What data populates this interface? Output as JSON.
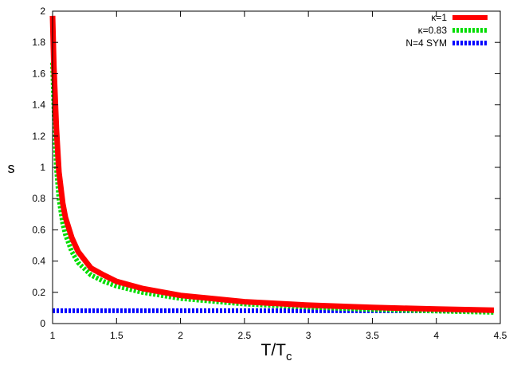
{
  "chart_data": {
    "type": "line",
    "title": "",
    "xlabel": "T/T",
    "xlabel_sub": "c",
    "ylabel": "s",
    "xlim": [
      1,
      4.5
    ],
    "ylim": [
      0,
      2
    ],
    "xticks": [
      1,
      1.5,
      2,
      2.5,
      3,
      3.5,
      4,
      4.5
    ],
    "yticks": [
      0,
      0.2,
      0.4,
      0.6,
      0.8,
      1,
      1.2,
      1.4,
      1.6,
      1.8,
      2
    ],
    "legend_position": "top-right",
    "grid": false,
    "series": [
      {
        "name": "κ=1",
        "color": "#ff0000",
        "style": "solid",
        "x": [
          1.0,
          1.01,
          1.03,
          1.05,
          1.08,
          1.1,
          1.15,
          1.2,
          1.3,
          1.4,
          1.5,
          1.7,
          2.0,
          2.5,
          3.0,
          3.5,
          4.0,
          4.45
        ],
        "y": [
          1.97,
          1.65,
          1.25,
          0.97,
          0.77,
          0.68,
          0.55,
          0.46,
          0.355,
          0.31,
          0.27,
          0.225,
          0.18,
          0.14,
          0.118,
          0.103,
          0.093,
          0.085
        ]
      },
      {
        "name": "κ=0.83",
        "color": "#00dd00",
        "style": "dotted",
        "x": [
          1.0,
          1.01,
          1.03,
          1.05,
          1.08,
          1.1,
          1.15,
          1.2,
          1.3,
          1.4,
          1.5,
          1.7,
          2.0,
          2.5,
          3.0,
          3.5,
          4.0,
          4.45
        ],
        "y": [
          1.67,
          1.4,
          1.0,
          0.8,
          0.64,
          0.57,
          0.46,
          0.39,
          0.31,
          0.27,
          0.24,
          0.2,
          0.16,
          0.125,
          0.105,
          0.09,
          0.08,
          0.072
        ]
      },
      {
        "name": "N=4 SYM",
        "color": "#0000ff",
        "style": "dotted",
        "x": [
          1.0,
          4.45
        ],
        "y": [
          0.082,
          0.082
        ]
      }
    ]
  }
}
